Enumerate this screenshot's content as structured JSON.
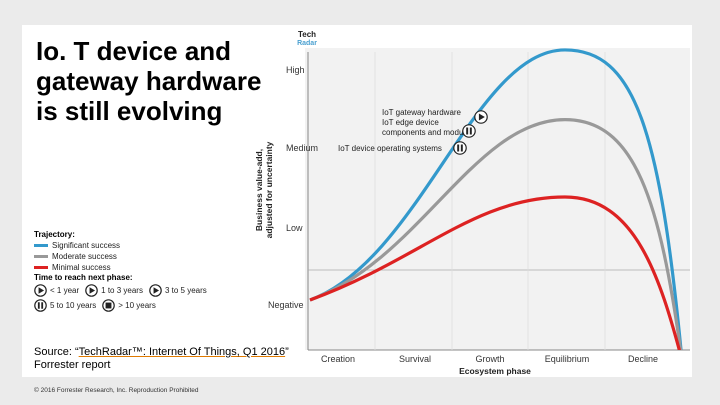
{
  "slide": {
    "title": "Io. T device and\ngateway hardware\nis still evolving",
    "logo": {
      "line1": "Tech",
      "line2": "Radar"
    },
    "source_prefix": "Source: “",
    "source_link": "TechRadar™: Internet Of Things, Q1 2016",
    "source_suffix": "” Forrester report",
    "copyright": "© 2016 Forrester Research, Inc. Reproduction Prohibited"
  },
  "legend": {
    "trajectory_title": "Trajectory:",
    "trajectory": [
      {
        "label": "Significant success",
        "color": "#3399cc"
      },
      {
        "label": "Moderate success",
        "color": "#999999"
      },
      {
        "label": "Minimal success",
        "color": "#dd2222"
      }
    ],
    "time_title": "Time to reach next phase:",
    "time": [
      {
        "icon": "play-circle-icon",
        "label": "< 1 year"
      },
      {
        "icon": "play-circle-icon",
        "label": "1 to 3 years"
      },
      {
        "icon": "play-circle-icon",
        "label": "3 to 5 years"
      },
      {
        "icon": "pause-circle-icon",
        "label": "5 to 10 years"
      },
      {
        "icon": "stop-circle-icon",
        "label": "> 10 years"
      }
    ]
  },
  "chart_data": {
    "type": "line",
    "ylabel": "Business value-add,\nadjusted for uncertainty",
    "xlabel": "Ecosystem phase",
    "y_levels": [
      "High",
      "Medium",
      "Low",
      "Negative"
    ],
    "phases": [
      "Creation",
      "Survival",
      "Growth",
      "Equilibrium",
      "Decline"
    ],
    "series": [
      {
        "name": "Significant success",
        "color": "#3399cc",
        "peak_level": 1.15
      },
      {
        "name": "Moderate success",
        "color": "#999999",
        "peak_level": 0.7
      },
      {
        "name": "Minimal success",
        "color": "#dd2222",
        "peak_level": 0.2
      }
    ],
    "annotations": [
      {
        "label": "IoT gateway hardware",
        "icon": "play-circle-icon"
      },
      {
        "label": "IoT edge device\ncomponents and modules",
        "icon": "pause-circle-icon"
      },
      {
        "label": "IoT device operating systems",
        "icon": "pause-circle-icon"
      }
    ]
  }
}
